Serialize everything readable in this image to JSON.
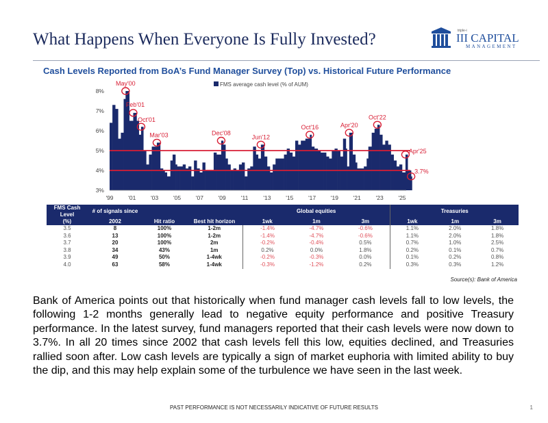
{
  "slide": {
    "title": "What Happens When Everyone Is Fully Invested?",
    "logo": {
      "small": "triple-i",
      "name": "III CAPITAL",
      "sub": "MANAGEMENT"
    },
    "subtitle": "Cash Levels Reported from BoA’s Fund Manager Survey (Top) vs. Historical Future Performance",
    "source": "Source(s): Bank of America",
    "paragraph": "Bank of America points out that historically when fund manager cash levels fall to low levels, the following 1-2 months generally lead to negative equity performance and positive Treasury performance. In the latest survey, fund managers reported that their cash levels were now down to 3.7%. In all 20 times since 2002 that cash levels fell this low, equities declined, and Treasuries rallied soon after. Low cash levels are typically a sign of market euphoria with limited ability to buy the dip, and this may help explain some of the turbulence we have seen in the last week.",
    "footer": "PAST PERFORMANCE IS NOT NECESSARILY INDICATIVE OF FUTURE RESULTS",
    "page_number": "1"
  },
  "colors": {
    "navy": "#1a2a6c",
    "red": "#d81e34",
    "title": "#1b2a5c",
    "subtitle": "#1f4e9c"
  },
  "chart_data": {
    "type": "bar",
    "legend": "FMS average cash level (% of AUM)",
    "legend_position": "top-center",
    "ylim": [
      3,
      8
    ],
    "y_ticks": [
      "3%",
      "4%",
      "5%",
      "6%",
      "7%",
      "8%"
    ],
    "x_ticks": [
      "'99",
      "'01",
      "'03",
      "'05",
      "'07",
      "'09",
      "'11",
      "'13",
      "'15",
      "'17",
      "'19",
      "'21",
      "'23",
      "'25"
    ],
    "reference_lines": [
      5,
      4
    ],
    "points": [
      [
        1999.0,
        6.4
      ],
      [
        1999.25,
        7.3
      ],
      [
        1999.5,
        7.1
      ],
      [
        1999.75,
        5.6
      ],
      [
        2000.0,
        5.9
      ],
      [
        2000.25,
        7.6
      ],
      [
        2000.42,
        8.0
      ],
      [
        2000.75,
        6.5
      ],
      [
        2001.1,
        6.9
      ],
      [
        2001.4,
        6.5
      ],
      [
        2001.6,
        5.8
      ],
      [
        2001.8,
        6.2
      ],
      [
        2002.0,
        5.0
      ],
      [
        2002.25,
        4.3
      ],
      [
        2002.5,
        4.8
      ],
      [
        2002.75,
        5.2
      ],
      [
        2003.2,
        5.4
      ],
      [
        2003.5,
        4.1
      ],
      [
        2003.75,
        4.0
      ],
      [
        2003.9,
        3.9
      ],
      [
        2004.1,
        3.7
      ],
      [
        2004.4,
        4.5
      ],
      [
        2004.6,
        4.8
      ],
      [
        2004.85,
        4.3
      ],
      [
        2005.0,
        4.2
      ],
      [
        2005.25,
        4.2
      ],
      [
        2005.5,
        4.3
      ],
      [
        2005.75,
        4.1
      ],
      [
        2006.0,
        4.2
      ],
      [
        2006.25,
        3.7
      ],
      [
        2006.5,
        4.5
      ],
      [
        2006.75,
        4.1
      ],
      [
        2007.0,
        3.9
      ],
      [
        2007.25,
        4.4
      ],
      [
        2007.5,
        4.0
      ],
      [
        2007.75,
        4.0
      ],
      [
        2008.0,
        4.0
      ],
      [
        2008.25,
        4.9
      ],
      [
        2008.5,
        4.8
      ],
      [
        2008.92,
        5.5
      ],
      [
        2009.1,
        5.3
      ],
      [
        2009.3,
        4.6
      ],
      [
        2009.5,
        4.3
      ],
      [
        2009.75,
        4.0
      ],
      [
        2010.0,
        4.1
      ],
      [
        2010.25,
        4.0
      ],
      [
        2010.5,
        4.3
      ],
      [
        2010.75,
        4.4
      ],
      [
        2011.0,
        3.7
      ],
      [
        2011.25,
        4.1
      ],
      [
        2011.5,
        4.2
      ],
      [
        2011.75,
        5.2
      ],
      [
        2012.0,
        4.8
      ],
      [
        2012.2,
        4.6
      ],
      [
        2012.45,
        5.3
      ],
      [
        2012.75,
        4.7
      ],
      [
        2013.0,
        4.2
      ],
      [
        2013.25,
        3.9
      ],
      [
        2013.5,
        4.3
      ],
      [
        2013.75,
        4.6
      ],
      [
        2014.0,
        4.6
      ],
      [
        2014.25,
        4.6
      ],
      [
        2014.5,
        4.8
      ],
      [
        2014.75,
        5.1
      ],
      [
        2015.0,
        4.9
      ],
      [
        2015.25,
        4.7
      ],
      [
        2015.5,
        5.5
      ],
      [
        2015.75,
        5.3
      ],
      [
        2016.0,
        5.5
      ],
      [
        2016.4,
        5.6
      ],
      [
        2016.8,
        5.8
      ],
      [
        2016.95,
        5.2
      ],
      [
        2017.2,
        5.1
      ],
      [
        2017.5,
        5.0
      ],
      [
        2017.75,
        4.9
      ],
      [
        2018.0,
        4.9
      ],
      [
        2018.25,
        4.7
      ],
      [
        2018.5,
        4.6
      ],
      [
        2018.75,
        5.0
      ],
      [
        2019.0,
        5.1
      ],
      [
        2019.25,
        5.0
      ],
      [
        2019.5,
        4.7
      ],
      [
        2019.75,
        5.6
      ],
      [
        2020.0,
        5.1
      ],
      [
        2020.1,
        4.2
      ],
      [
        2020.3,
        5.9
      ],
      [
        2020.6,
        4.8
      ],
      [
        2020.85,
        4.4
      ],
      [
        2021.0,
        4.1
      ],
      [
        2021.3,
        4.1
      ],
      [
        2021.6,
        4.2
      ],
      [
        2021.85,
        4.6
      ],
      [
        2022.0,
        5.2
      ],
      [
        2022.3,
        5.9
      ],
      [
        2022.55,
        6.1
      ],
      [
        2022.8,
        6.3
      ],
      [
        2023.0,
        5.8
      ],
      [
        2023.25,
        5.3
      ],
      [
        2023.5,
        5.5
      ],
      [
        2023.75,
        5.3
      ],
      [
        2024.0,
        4.8
      ],
      [
        2024.25,
        4.5
      ],
      [
        2024.5,
        4.2
      ],
      [
        2024.75,
        4.3
      ],
      [
        2025.0,
        3.9
      ],
      [
        2025.3,
        4.8
      ],
      [
        2025.5,
        4.0
      ],
      [
        2025.8,
        3.7
      ]
    ],
    "annotations": [
      {
        "label": "May'00",
        "x": 2000.42,
        "y": 8.0
      },
      {
        "label": "Feb'01",
        "x": 2001.1,
        "y": 6.9
      },
      {
        "label": "Oct'01",
        "x": 2001.8,
        "y": 6.2
      },
      {
        "label": "Mar'03",
        "x": 2003.2,
        "y": 5.4
      },
      {
        "label": "Dec'08",
        "x": 2008.92,
        "y": 5.5
      },
      {
        "label": "Jun'12",
        "x": 2012.45,
        "y": 5.3
      },
      {
        "label": "Oct'16",
        "x": 2016.8,
        "y": 5.8
      },
      {
        "label": "Apr'20",
        "x": 2020.3,
        "y": 5.9
      },
      {
        "label": "Oct'22",
        "x": 2022.8,
        "y": 6.3
      },
      {
        "label": "Apr'25",
        "x": 2025.3,
        "y": 4.8
      },
      {
        "label": "3.7%",
        "x": 2025.8,
        "y": 3.7
      }
    ]
  },
  "table": {
    "header_top": [
      "FMS Cash Level",
      "# of signals since",
      "",
      "",
      "Global equities",
      "Treasuries"
    ],
    "header_bottom": [
      "(%)",
      "2002",
      "Hit ratio",
      "Best hit horizon",
      "1wk",
      "1m",
      "3m",
      "1wk",
      "1m",
      "3m"
    ],
    "rows": [
      [
        "3.5",
        "8",
        "100%",
        "1-2m",
        "-1.4%",
        "-4.7%",
        "-0.6%",
        "1.1%",
        "2.0%",
        "1.8%"
      ],
      [
        "3.6",
        "13",
        "100%",
        "1-2m",
        "-1.4%",
        "-4.7%",
        "-0.6%",
        "1.1%",
        "2.0%",
        "1.8%"
      ],
      [
        "3.7",
        "20",
        "100%",
        "2m",
        "-0.2%",
        "-0.4%",
        "0.5%",
        "0.7%",
        "1.0%",
        "2.5%"
      ],
      [
        "3.8",
        "34",
        "43%",
        "1m",
        "0.2%",
        "0.0%",
        "1.8%",
        "0.2%",
        "0.1%",
        "0.7%"
      ],
      [
        "3.9",
        "49",
        "50%",
        "1-4wk",
        "-0.2%",
        "-0.3%",
        "0.0%",
        "0.1%",
        "0.2%",
        "0.8%"
      ],
      [
        "4.0",
        "63",
        "58%",
        "1-4wk",
        "-0.3%",
        "-1.2%",
        "0.2%",
        "0.3%",
        "0.3%",
        "1.2%"
      ]
    ]
  }
}
